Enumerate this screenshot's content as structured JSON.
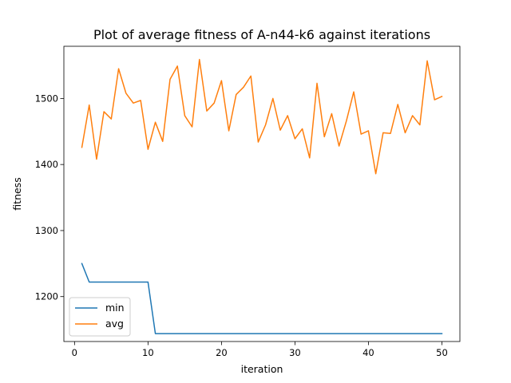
{
  "chart_data": {
    "type": "line",
    "title": "Plot of average fitness of A-n44-k6 against iterations",
    "xlabel": "iteration",
    "ylabel": "fitness",
    "xlim": [
      -1.45,
      52.45
    ],
    "ylim": [
      1132,
      1579
    ],
    "xticks": [
      0,
      10,
      20,
      30,
      40,
      50
    ],
    "yticks": [
      1200,
      1300,
      1400,
      1500
    ],
    "grid": false,
    "legend_position": "lower left",
    "x": [
      1,
      2,
      3,
      4,
      5,
      6,
      7,
      8,
      9,
      10,
      11,
      12,
      13,
      14,
      15,
      16,
      17,
      18,
      19,
      20,
      21,
      22,
      23,
      24,
      25,
      26,
      27,
      28,
      29,
      30,
      31,
      32,
      33,
      34,
      35,
      36,
      37,
      38,
      39,
      40,
      41,
      42,
      43,
      44,
      45,
      46,
      47,
      48,
      49,
      50
    ],
    "series": [
      {
        "name": "min",
        "color": "#1f77b4",
        "values": [
          1250,
          1222,
          1222,
          1222,
          1222,
          1222,
          1222,
          1222,
          1222,
          1222,
          1144,
          1144,
          1144,
          1144,
          1144,
          1144,
          1144,
          1144,
          1144,
          1144,
          1144,
          1144,
          1144,
          1144,
          1144,
          1144,
          1144,
          1144,
          1144,
          1144,
          1144,
          1144,
          1144,
          1144,
          1144,
          1144,
          1144,
          1144,
          1144,
          1144,
          1144,
          1144,
          1144,
          1144,
          1144,
          1144,
          1144,
          1144,
          1144,
          1144
        ]
      },
      {
        "name": "avg",
        "color": "#ff7f0e",
        "values": [
          1426,
          1490,
          1408,
          1480,
          1469,
          1545,
          1508,
          1493,
          1497,
          1423,
          1464,
          1435,
          1529,
          1549,
          1474,
          1457,
          1559,
          1481,
          1493,
          1527,
          1451,
          1506,
          1517,
          1534,
          1434,
          1460,
          1500,
          1452,
          1474,
          1439,
          1454,
          1410,
          1523,
          1442,
          1477,
          1428,
          1466,
          1510,
          1446,
          1451,
          1386,
          1448,
          1447,
          1491,
          1448,
          1474,
          1460,
          1557,
          1498,
          1503
        ]
      }
    ]
  }
}
